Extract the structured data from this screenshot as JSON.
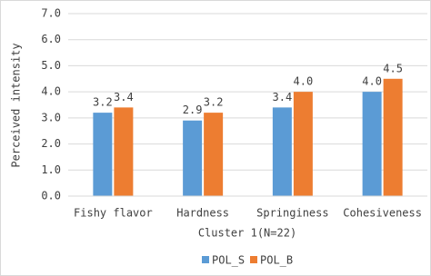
{
  "chart_data": {
    "type": "bar",
    "x_label": "Cluster 1(N=22)",
    "y_label": "Perceived intensity",
    "categories": [
      "Fishy flavor",
      "Hardness",
      "Springiness",
      "Cohesiveness"
    ],
    "series": [
      {
        "name": "POL_S",
        "color": "#5b9bd5",
        "values": [
          3.2,
          2.9,
          3.4,
          4.0
        ],
        "value_labels": [
          "3.2",
          "2.9",
          "3.4",
          "4.0"
        ]
      },
      {
        "name": "POL_B",
        "color": "#ed7d31",
        "values": [
          3.4,
          3.2,
          4.0,
          4.5
        ],
        "value_labels": [
          "3.4",
          "3.2",
          "4.0",
          "4.5"
        ]
      }
    ],
    "ylim": [
      0,
      7
    ],
    "yticks": [
      {
        "value": 0,
        "label": "0.0"
      },
      {
        "value": 1,
        "label": "1.0"
      },
      {
        "value": 2,
        "label": "2.0"
      },
      {
        "value": 3,
        "label": "3.0"
      },
      {
        "value": 4,
        "label": "4.0"
      },
      {
        "value": 5,
        "label": "5.0"
      },
      {
        "value": 6,
        "label": "6.0"
      },
      {
        "value": 7,
        "label": "7.0"
      }
    ],
    "grid": true,
    "legend": "bottom"
  }
}
